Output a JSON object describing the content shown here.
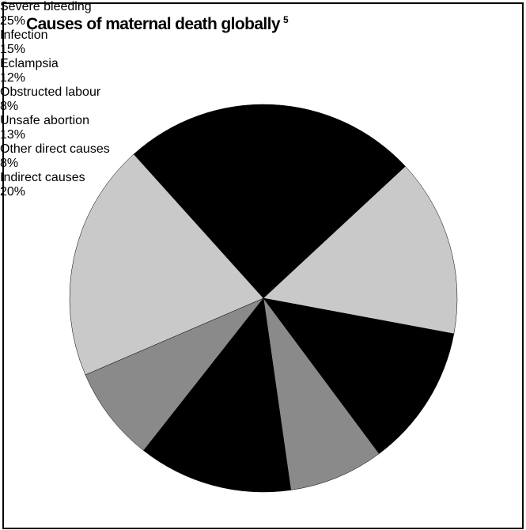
{
  "chart_data": {
    "type": "pie",
    "title": "Causes of maternal death globally",
    "title_superscript": "5",
    "categories": [
      "Severe bleeding",
      "Infection",
      "Eclampsia",
      "Obstructed labour",
      "Unsafe abortion",
      "Other\ndirect causes",
      "Indirect\ncauses"
    ],
    "values": [
      25,
      15,
      12,
      8,
      13,
      8,
      20
    ],
    "value_labels": [
      "25%",
      "15%",
      "12%",
      "8%",
      "13%",
      "8%",
      "20%"
    ],
    "colors": [
      "#000000",
      "#c9c9c9",
      "#000000",
      "#8a8a8a",
      "#000000",
      "#8a8a8a",
      "#c9c9c9"
    ]
  }
}
